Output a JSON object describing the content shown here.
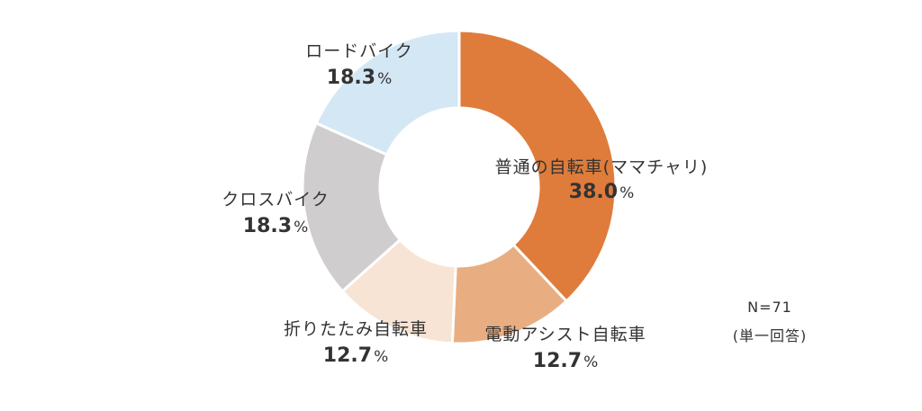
{
  "chart_data": {
    "type": "pie",
    "donut": true,
    "unit": "%",
    "slices": [
      {
        "label": "普通の自転車(ママチャリ)",
        "value": 38.0,
        "value_text": "38.0",
        "color": "#DF7C3B"
      },
      {
        "label": "電動アシスト自転車",
        "value": 12.7,
        "value_text": "12.7",
        "color": "#E8AE82"
      },
      {
        "label": "折りたたみ自転車",
        "value": 12.7,
        "value_text": "12.7",
        "color": "#F7E4D4"
      },
      {
        "label": "クロスバイク",
        "value": 18.3,
        "value_text": "18.3",
        "color": "#CFCDCE"
      },
      {
        "label": "ロードバイク",
        "value": 18.3,
        "value_text": "18.3",
        "color": "#D4E7F5"
      }
    ]
  },
  "notes": {
    "sample": "N=71",
    "question_type": "(単一回答)"
  }
}
